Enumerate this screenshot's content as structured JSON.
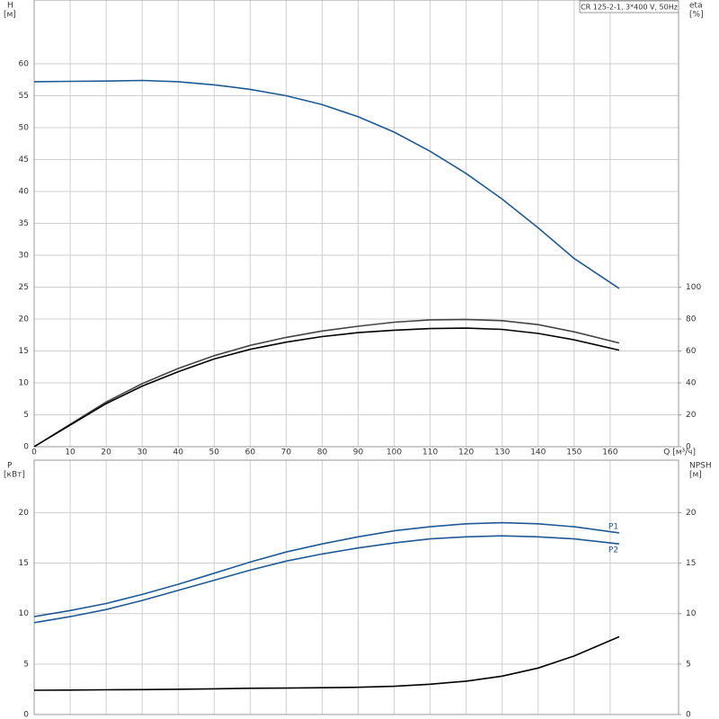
{
  "chart_data": [
    {
      "type": "line",
      "title": "CR 125-2-1, 3*400 V, 50Hz",
      "y_label": "H",
      "y_unit": "[м]",
      "y2_label": "eta",
      "y2_unit": "[%]",
      "x_label": "Q [м³/ч]",
      "x": [
        0,
        10,
        20,
        30,
        40,
        50,
        60,
        70,
        80,
        90,
        100,
        110,
        120,
        130,
        140,
        150,
        162.5
      ],
      "xlim": [
        0,
        179
      ],
      "xticks": [
        0,
        10,
        20,
        30,
        40,
        50,
        60,
        70,
        80,
        90,
        100,
        110,
        120,
        130,
        140,
        150,
        160
      ],
      "ylim": [
        0,
        70
      ],
      "yticks": [
        0,
        5,
        10,
        15,
        20,
        25,
        30,
        35,
        40,
        45,
        50,
        55,
        60
      ],
      "y2lim": [
        0,
        280
      ],
      "y2ticks": [
        0,
        20,
        40,
        60,
        80,
        100
      ],
      "grid": true,
      "series": [
        {
          "color": "#1f5a96",
          "values": [
            57.2,
            57.25,
            57.3,
            57.4,
            57.2,
            56.7,
            56.0,
            55.0,
            53.6,
            51.7,
            49.3,
            46.3,
            42.8,
            38.8,
            34.3,
            29.5,
            24.8
          ]
        },
        {
          "color": "#444444",
          "axis": "y2",
          "values": [
            0,
            14,
            28,
            39.5,
            49,
            57,
            63.5,
            68.5,
            72.5,
            75.5,
            78,
            79.5,
            79.8,
            79,
            76.5,
            72,
            65
          ]
        },
        {
          "color": "#000000",
          "axis": "y2",
          "values": [
            0,
            13.5,
            27,
            38,
            47,
            55,
            61,
            65.5,
            69,
            71.5,
            73,
            74,
            74.3,
            73.5,
            71,
            67,
            60.5
          ]
        }
      ]
    },
    {
      "type": "line",
      "y_label": "P",
      "y_unit": "[кВт]",
      "y2_label": "NPSH",
      "y2_unit": "[м]",
      "x": [
        0,
        10,
        20,
        30,
        40,
        50,
        60,
        70,
        80,
        90,
        100,
        110,
        120,
        130,
        140,
        150,
        162.5
      ],
      "xlim": [
        0,
        179
      ],
      "xticks": [
        0,
        10,
        20,
        30,
        40,
        50,
        60,
        70,
        80,
        90,
        100,
        110,
        120,
        130,
        140,
        150,
        160
      ],
      "ylim": [
        0,
        25.2
      ],
      "yticks": [
        0,
        5,
        10,
        15,
        20
      ],
      "y2lim": [
        0,
        25.2
      ],
      "y2ticks": [
        0,
        5,
        10,
        15,
        20
      ],
      "grid": true,
      "series": [
        {
          "name": "P1",
          "color": "#1f5a96",
          "values": [
            9.7,
            10.3,
            11.0,
            11.9,
            12.9,
            14.0,
            15.1,
            16.1,
            16.9,
            17.6,
            18.2,
            18.6,
            18.9,
            19.0,
            18.9,
            18.6,
            18.0
          ]
        },
        {
          "name": "P2",
          "color": "#1f5a96",
          "values": [
            9.1,
            9.7,
            10.4,
            11.3,
            12.3,
            13.3,
            14.3,
            15.2,
            15.9,
            16.5,
            17.0,
            17.4,
            17.6,
            17.7,
            17.6,
            17.4,
            16.9
          ]
        },
        {
          "color": "#000000",
          "axis": "y2",
          "values": [
            2.4,
            2.42,
            2.45,
            2.47,
            2.5,
            2.55,
            2.6,
            2.62,
            2.65,
            2.7,
            2.8,
            3.0,
            3.3,
            3.8,
            4.6,
            5.8,
            7.7
          ]
        }
      ]
    }
  ]
}
